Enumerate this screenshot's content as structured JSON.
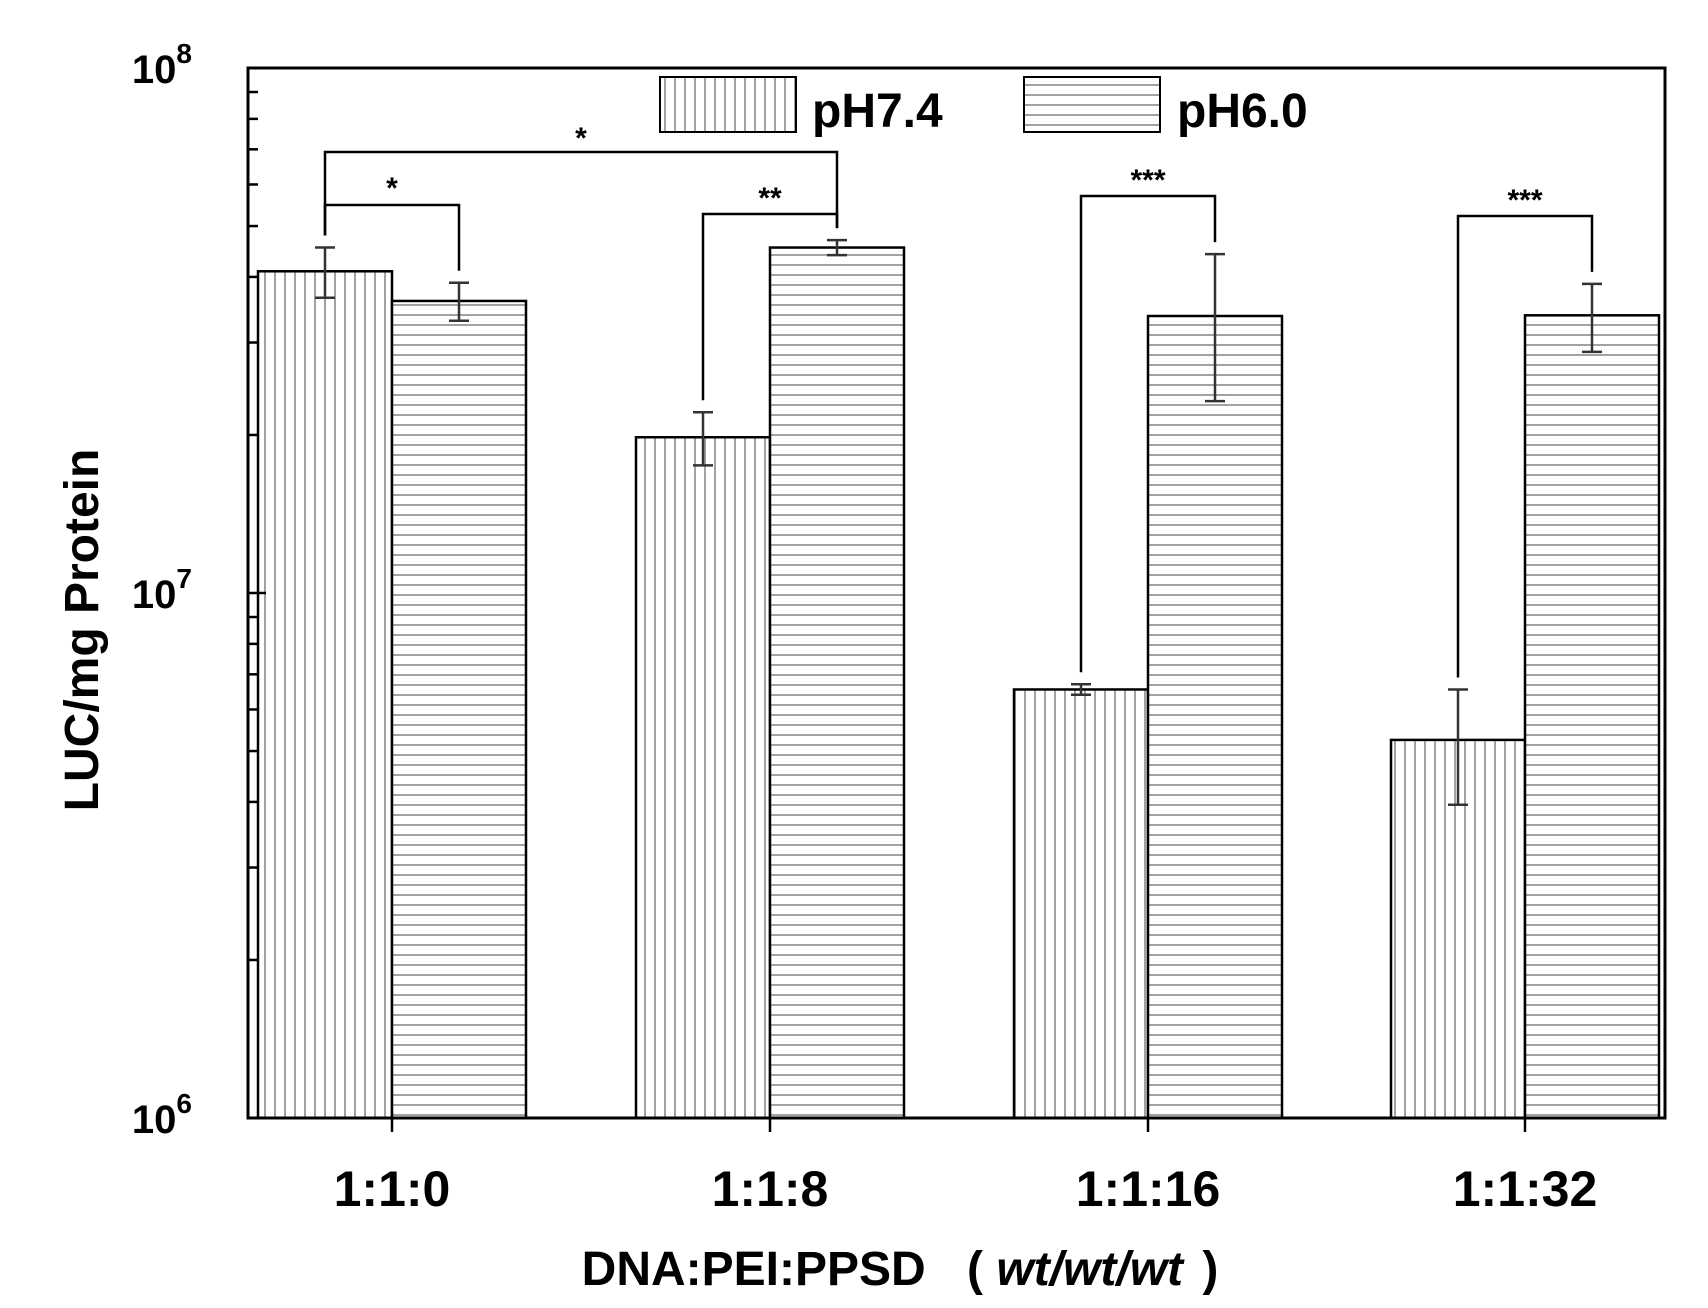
{
  "chart_data": {
    "type": "bar",
    "scale": "log",
    "title": "",
    "xlabel": "DNA:PEI:PPSD",
    "xlabel_units": "wt/wt/wt",
    "ylabel": "LUC/mg Protein",
    "ylim": [
      1000000,
      100000000
    ],
    "y_ticks": [
      {
        "base": "10",
        "exp": "6",
        "value": 1000000
      },
      {
        "base": "10",
        "exp": "7",
        "value": 10000000
      },
      {
        "base": "10",
        "exp": "8",
        "value": 100000000
      }
    ],
    "categories": [
      "1:1:0",
      "1:1:8",
      "1:1:16",
      "1:1:32"
    ],
    "series": [
      {
        "name": "pH7.4",
        "pattern": "vertical",
        "values": [
          41000000,
          19800000,
          6550000,
          5250000
        ],
        "errors": [
          4500000,
          2300000,
          150000,
          1300000
        ]
      },
      {
        "name": "pH6.0",
        "pattern": "horizontal",
        "values": [
          36000000,
          45500000,
          33700000,
          33800000
        ],
        "errors": [
          3000000,
          1500000,
          10500000,
          5000000
        ]
      }
    ],
    "significance": [
      {
        "label": "*",
        "from": [
          0,
          0
        ],
        "to": [
          0,
          1
        ]
      },
      {
        "label": "*",
        "from": [
          0,
          0
        ],
        "to": [
          1,
          1
        ]
      },
      {
        "label": "**",
        "from": [
          1,
          0
        ],
        "to": [
          1,
          1
        ]
      },
      {
        "label": "***",
        "from": [
          2,
          0
        ],
        "to": [
          2,
          1
        ]
      },
      {
        "label": "***",
        "from": [
          3,
          0
        ],
        "to": [
          3,
          1
        ]
      }
    ],
    "legend_position": "top-center",
    "colors": {
      "bar_fill": "#ffffff",
      "stroke": "#000000",
      "hatch": "#888888"
    }
  }
}
